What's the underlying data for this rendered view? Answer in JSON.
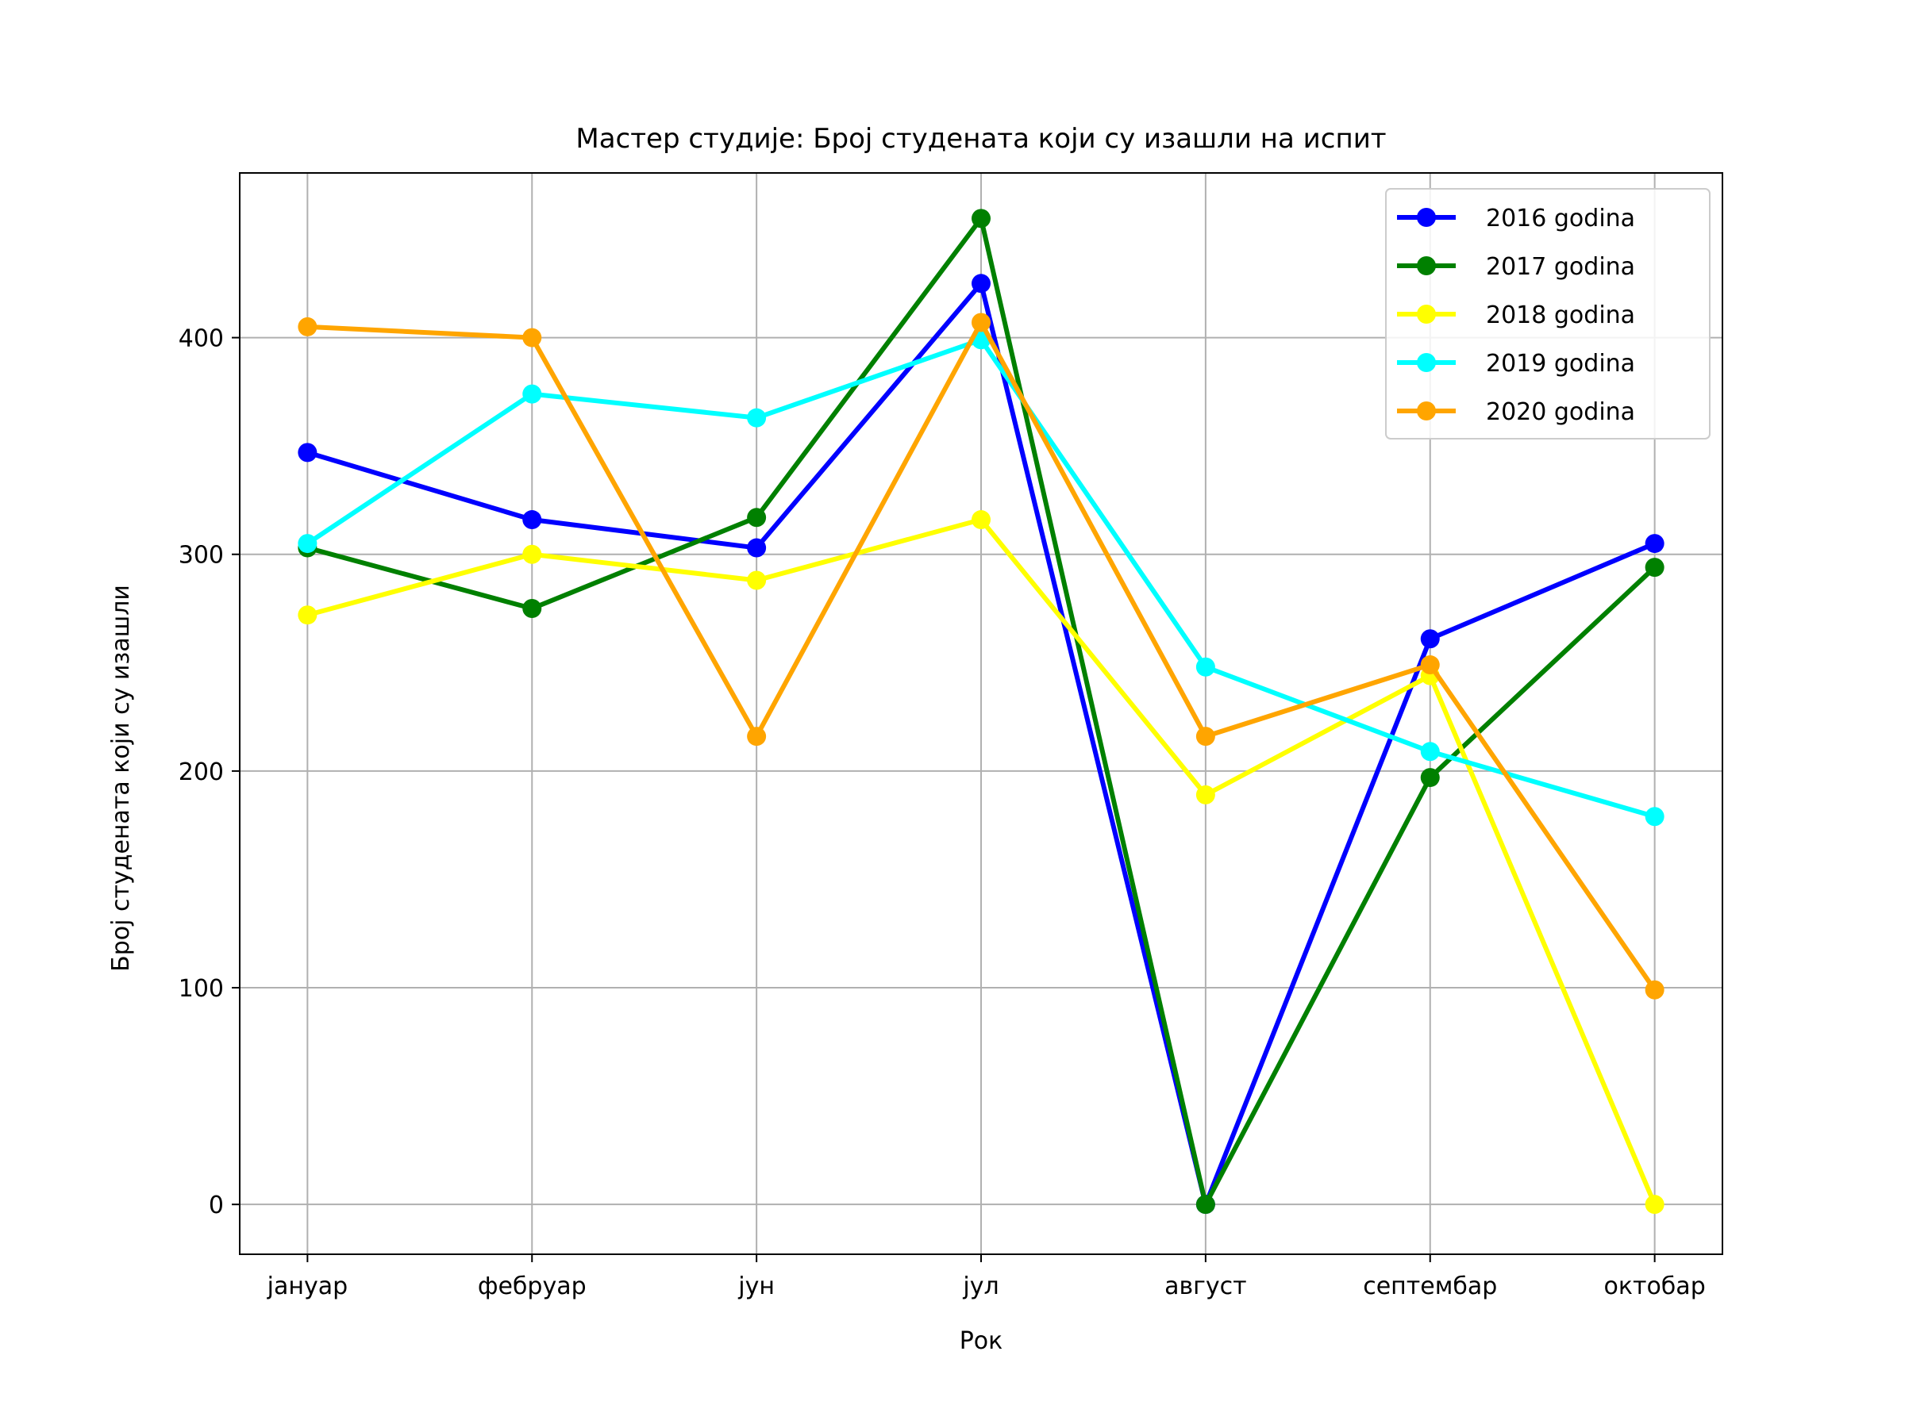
{
  "chart_data": {
    "type": "line",
    "title": "Мастер студије: Број студената који су изашли на испит",
    "xlabel": "Рок",
    "ylabel": "Број студената који су изашли",
    "categories": [
      "јануар",
      "фебруар",
      "јун",
      "јул",
      "август",
      "септембар",
      "октобар"
    ],
    "ylim": [
      -23,
      476
    ],
    "yticks": [
      0,
      100,
      200,
      300,
      400
    ],
    "grid": true,
    "legend_position": "top-right",
    "series": [
      {
        "name": "2016 godina",
        "color": "#0000ff",
        "values": [
          347,
          316,
          303,
          425,
          0,
          261,
          305
        ]
      },
      {
        "name": "2017 godina",
        "color": "#008000",
        "values": [
          303,
          275,
          317,
          455,
          0,
          197,
          294
        ]
      },
      {
        "name": "2018 godina",
        "color": "#ffff00",
        "values": [
          272,
          300,
          288,
          316,
          189,
          244,
          0
        ]
      },
      {
        "name": "2019 godina",
        "color": "#00ffff",
        "values": [
          305,
          374,
          363,
          399,
          248,
          209,
          179
        ]
      },
      {
        "name": "2020 godina",
        "color": "#ffa500",
        "values": [
          405,
          400,
          216,
          407,
          216,
          249,
          99
        ]
      }
    ]
  }
}
